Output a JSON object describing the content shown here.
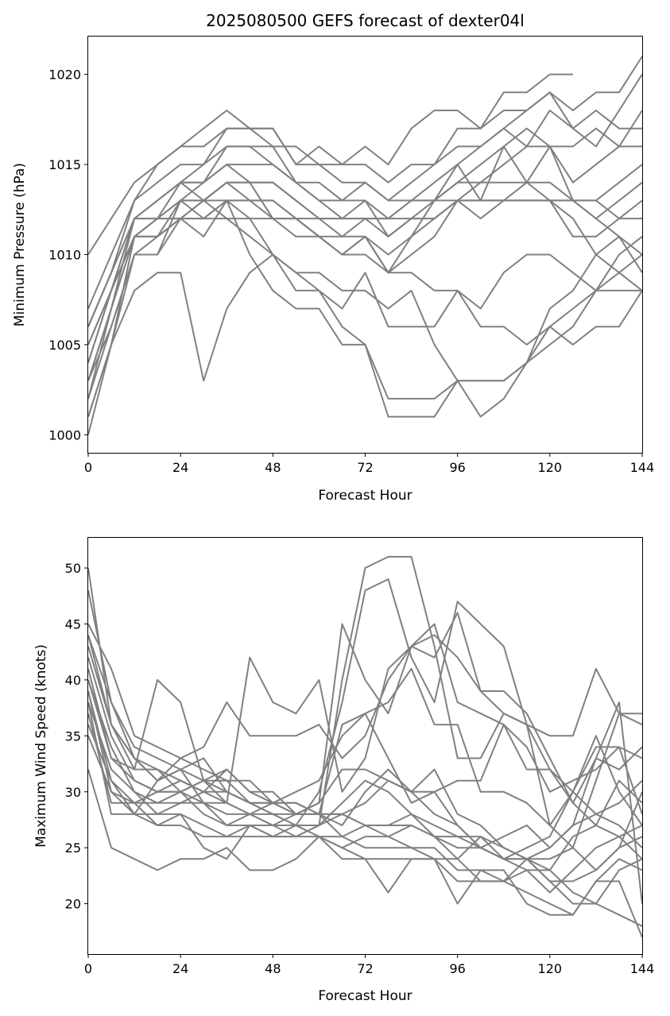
{
  "chart_data": [
    {
      "type": "line",
      "title": "2025080500 GEFS forecast of dexter04l",
      "xlabel": "Forecast Hour",
      "ylabel": "Minimum Pressure (hPa)",
      "xlim": [
        0,
        144
      ],
      "ylim": [
        999,
        1022.1
      ],
      "x_ticks": [
        0,
        24,
        48,
        72,
        96,
        120,
        144
      ],
      "y_ticks": [
        1000,
        1005,
        1010,
        1015,
        1020
      ],
      "line_color": "#808080",
      "grid": false,
      "legend": "none",
      "x": [
        0,
        6,
        12,
        18,
        24,
        30,
        36,
        42,
        48,
        54,
        60,
        66,
        72,
        78,
        84,
        90,
        96,
        102,
        108,
        114,
        120,
        126,
        132,
        138,
        144
      ],
      "series": [
        {
          "values": [
            1010,
            1012,
            1014,
            1015,
            1016,
            1016,
            1017,
            1017,
            1017,
            1015,
            1015,
            1014,
            1014,
            1013,
            1013,
            1013,
            1013,
            1013,
            1013,
            1013,
            1013,
            1013,
            1013,
            1012,
            1012
          ]
        },
        {
          "values": [
            1007,
            1010,
            1013,
            1015,
            1016,
            1017,
            1018,
            1017,
            1017,
            1015,
            1016,
            1015,
            1016,
            1015,
            1017,
            1018,
            1018,
            1017,
            1019,
            1019,
            1020,
            1020,
            null,
            null,
            null
          ]
        },
        {
          "values": [
            1006,
            1009,
            1013,
            1014,
            1015,
            1015,
            1016,
            1016,
            1016,
            1016,
            1015,
            1015,
            1015,
            1014,
            1015,
            1015,
            1017,
            1017,
            1018,
            1018,
            1019,
            1018,
            1019,
            1019,
            1021
          ]
        },
        {
          "values": [
            1005,
            1008,
            1012,
            1013,
            1014,
            1015,
            1017,
            1017,
            1016,
            1014,
            1014,
            1013,
            1014,
            1013,
            1014,
            1015,
            1016,
            1016,
            1017,
            1018,
            1019,
            1017,
            1016,
            1018,
            1020
          ]
        },
        {
          "values": [
            1004,
            1008,
            1012,
            1013,
            1014,
            1014,
            1016,
            1016,
            1015,
            1014,
            1013,
            1013,
            1013,
            1012,
            1013,
            1014,
            1015,
            1016,
            1017,
            1016,
            1018,
            1017,
            1018,
            1017,
            1017
          ]
        },
        {
          "values": [
            1005,
            1008,
            1011,
            1012,
            1013,
            1014,
            1015,
            1015,
            1015,
            1014,
            1013,
            1012,
            1013,
            1011,
            1012,
            1013,
            1014,
            1015,
            1016,
            1017,
            1016,
            1016,
            1017,
            1016,
            1018
          ]
        },
        {
          "values": [
            1003,
            1007,
            1011,
            1012,
            1014,
            1014,
            1015,
            1014,
            1014,
            1013,
            1012,
            1011,
            1012,
            1011,
            1012,
            1012,
            1013,
            1014,
            1015,
            1016,
            1016,
            1014,
            1015,
            1016,
            1016
          ]
        },
        {
          "values": [
            1006,
            1009,
            1012,
            1013,
            1014,
            1013,
            1014,
            1014,
            1014,
            1013,
            1012,
            1012,
            1012,
            1012,
            1013,
            1013,
            1014,
            1014,
            1014,
            1014,
            1014,
            1013,
            1013,
            1014,
            1015
          ]
        },
        {
          "values": [
            1002,
            1006,
            1010,
            1011,
            1013,
            1013,
            1014,
            1013,
            1012,
            1011,
            1011,
            1010,
            1011,
            1010,
            1011,
            1012,
            1013,
            1013,
            1013,
            1013,
            1013,
            1013,
            1012,
            1013,
            1014
          ]
        },
        {
          "values": [
            1004,
            1008,
            1011,
            1011,
            1012,
            1012,
            1013,
            1013,
            1013,
            1012,
            1011,
            1011,
            1011,
            1009,
            1011,
            1013,
            1015,
            1013,
            1016,
            1014,
            1016,
            1013,
            1012,
            1011,
            1010
          ]
        },
        {
          "values": [
            1001,
            1005,
            1010,
            1010,
            1012,
            1012,
            1013,
            1013,
            1013,
            1012,
            1011,
            1010,
            1011,
            1009,
            1010,
            1011,
            1013,
            1012,
            1013,
            1013,
            1013,
            1011,
            1011,
            1012,
            1013
          ]
        },
        {
          "values": [
            1000,
            1005,
            1011,
            1012,
            1013,
            1012,
            1012,
            1012,
            1012,
            1012,
            1012,
            1012,
            1012,
            1012,
            1012,
            1012,
            1013,
            1013,
            1013,
            1014,
            1013,
            1012,
            1010,
            1011,
            1009
          ]
        },
        {
          "values": [
            1003,
            1006,
            1010,
            1010,
            1013,
            1013,
            1014,
            1014,
            1012,
            1012,
            1011,
            1010,
            1010,
            1009,
            1009,
            1008,
            1008,
            1007,
            1009,
            1010,
            1010,
            1009,
            1008,
            1008,
            1008
          ]
        },
        {
          "values": [
            1002,
            1007,
            1012,
            1012,
            1012,
            1011,
            1013,
            1010,
            1008,
            1007,
            1007,
            1005,
            1005,
            1002,
            1002,
            1002,
            1003,
            1003,
            1003,
            1004,
            1006,
            1007,
            1008,
            1009,
            1010
          ]
        },
        {
          "values": [
            1001,
            1005,
            1008,
            1009,
            1009,
            1003,
            1007,
            1009,
            1010,
            1008,
            1008,
            1006,
            1005,
            1001,
            1001,
            1001,
            1003,
            1001,
            1002,
            1004,
            1005,
            1006,
            1008,
            1010,
            1011
          ]
        },
        {
          "values": [
            1006,
            1009,
            1012,
            1012,
            1012,
            1013,
            1013,
            1012,
            1010,
            1009,
            1009,
            1008,
            1008,
            1007,
            1008,
            1005,
            1003,
            1003,
            1003,
            1004,
            1007,
            1008,
            1010,
            1009,
            1008
          ]
        },
        {
          "values": [
            1003,
            1007,
            1011,
            1011,
            1012,
            1013,
            1012,
            1011,
            1010,
            1009,
            1008,
            1007,
            1009,
            1006,
            1006,
            1006,
            1008,
            1006,
            1006,
            1005,
            1006,
            1005,
            1006,
            1006,
            1008
          ]
        }
      ]
    },
    {
      "type": "line",
      "title": "",
      "xlabel": "Forecast Hour",
      "ylabel": "Maximum Wind Speed (knots)",
      "xlim": [
        0,
        144
      ],
      "ylim": [
        15.5,
        52.7
      ],
      "x_ticks": [
        0,
        24,
        48,
        72,
        96,
        120,
        144
      ],
      "y_ticks": [
        20,
        25,
        30,
        35,
        40,
        45,
        50
      ],
      "line_color": "#808080",
      "grid": false,
      "legend": "none",
      "x": [
        0,
        6,
        12,
        18,
        24,
        30,
        36,
        42,
        48,
        54,
        60,
        66,
        72,
        78,
        84,
        90,
        96,
        102,
        108,
        114,
        120,
        126,
        132,
        138,
        144
      ],
      "series": [
        {
          "values": [
            50,
            36,
            33,
            32,
            31,
            30,
            29,
            28,
            27,
            26,
            27,
            40,
            50,
            51,
            51,
            43,
            33,
            33,
            37,
            36,
            35,
            35,
            41,
            37,
            36
          ]
        },
        {
          "values": [
            48,
            38,
            34,
            33,
            32,
            31,
            30,
            29,
            28,
            27,
            30,
            38,
            48,
            49,
            42,
            38,
            47,
            45,
            43,
            36,
            32,
            30,
            28,
            27,
            25
          ]
        },
        {
          "values": [
            45,
            41,
            35,
            34,
            33,
            32,
            31,
            29,
            28,
            28,
            29,
            45,
            40,
            37,
            43,
            45,
            38,
            37,
            36,
            32,
            32,
            29,
            27,
            26,
            24
          ]
        },
        {
          "values": [
            43,
            36,
            32,
            40,
            38,
            31,
            29,
            42,
            38,
            37,
            40,
            30,
            33,
            41,
            43,
            42,
            46,
            39,
            39,
            37,
            33,
            29,
            33,
            38,
            20
          ]
        },
        {
          "values": [
            44,
            38,
            33,
            31,
            33,
            34,
            38,
            35,
            35,
            35,
            36,
            33,
            35,
            40,
            43,
            44,
            42,
            39,
            37,
            36,
            27,
            30,
            34,
            34,
            33
          ]
        },
        {
          "values": [
            42,
            35,
            31,
            30,
            31,
            30,
            30,
            29,
            29,
            30,
            31,
            35,
            37,
            38,
            41,
            36,
            36,
            30,
            30,
            29,
            27,
            25,
            23,
            25,
            30
          ]
        },
        {
          "values": [
            40,
            34,
            30,
            29,
            29,
            29,
            28,
            28,
            29,
            28,
            29,
            32,
            32,
            31,
            30,
            32,
            28,
            27,
            25,
            24,
            22,
            22,
            23,
            25,
            26
          ]
        },
        {
          "values": [
            41,
            33,
            31,
            30,
            30,
            29,
            29,
            28,
            27,
            28,
            28,
            36,
            37,
            33,
            29,
            30,
            31,
            31,
            36,
            34,
            30,
            31,
            32,
            34,
            28
          ]
        },
        {
          "values": [
            38,
            32,
            30,
            28,
            29,
            30,
            32,
            30,
            29,
            28,
            28,
            27,
            30,
            32,
            30,
            28,
            27,
            25,
            26,
            27,
            25,
            27,
            33,
            32,
            34
          ]
        },
        {
          "values": [
            39,
            31,
            29,
            29,
            30,
            31,
            31,
            31,
            29,
            29,
            28,
            28,
            29,
            31,
            30,
            30,
            27,
            25,
            24,
            25,
            26,
            30,
            35,
            30,
            27
          ]
        },
        {
          "values": [
            37,
            29,
            29,
            30,
            30,
            31,
            32,
            30,
            30,
            28,
            28,
            28,
            27,
            27,
            28,
            27,
            26,
            26,
            25,
            24,
            25,
            27,
            28,
            29,
            31
          ]
        },
        {
          "values": [
            38,
            28,
            28,
            31,
            32,
            29,
            27,
            28,
            28,
            27,
            27,
            28,
            27,
            26,
            27,
            26,
            24,
            26,
            24,
            23,
            23,
            26,
            27,
            31,
            29
          ]
        },
        {
          "values": [
            40,
            33,
            32,
            32,
            30,
            28,
            27,
            27,
            26,
            26,
            27,
            29,
            31,
            30,
            28,
            26,
            25,
            25,
            24,
            24,
            22,
            20,
            20,
            23,
            24
          ]
        },
        {
          "values": [
            36,
            31,
            28,
            27,
            28,
            27,
            26,
            27,
            27,
            27,
            26,
            25,
            26,
            26,
            25,
            24,
            24,
            22,
            22,
            23,
            21,
            23,
            25,
            26,
            27
          ]
        },
        {
          "values": [
            39,
            30,
            29,
            27,
            27,
            26,
            26,
            26,
            26,
            26,
            26,
            26,
            25,
            25,
            25,
            25,
            23,
            23,
            22,
            21,
            20,
            19,
            22,
            24,
            23
          ]
        },
        {
          "values": [
            35,
            30,
            28,
            28,
            28,
            25,
            24,
            27,
            26,
            27,
            26,
            25,
            24,
            21,
            24,
            24,
            20,
            23,
            23,
            20,
            19,
            19,
            22,
            22,
            17
          ]
        },
        {
          "values": [
            32,
            25,
            24,
            23,
            24,
            24,
            25,
            23,
            23,
            24,
            26,
            24,
            24,
            24,
            24,
            24,
            22,
            22,
            22,
            24,
            23,
            21,
            20,
            19,
            18
          ]
        },
        {
          "values": [
            44,
            36,
            33,
            31,
            32,
            33,
            30,
            29,
            29,
            29,
            28,
            26,
            27,
            27,
            27,
            26,
            26,
            25,
            24,
            24,
            24,
            25,
            31,
            37,
            37
          ]
        }
      ]
    }
  ]
}
